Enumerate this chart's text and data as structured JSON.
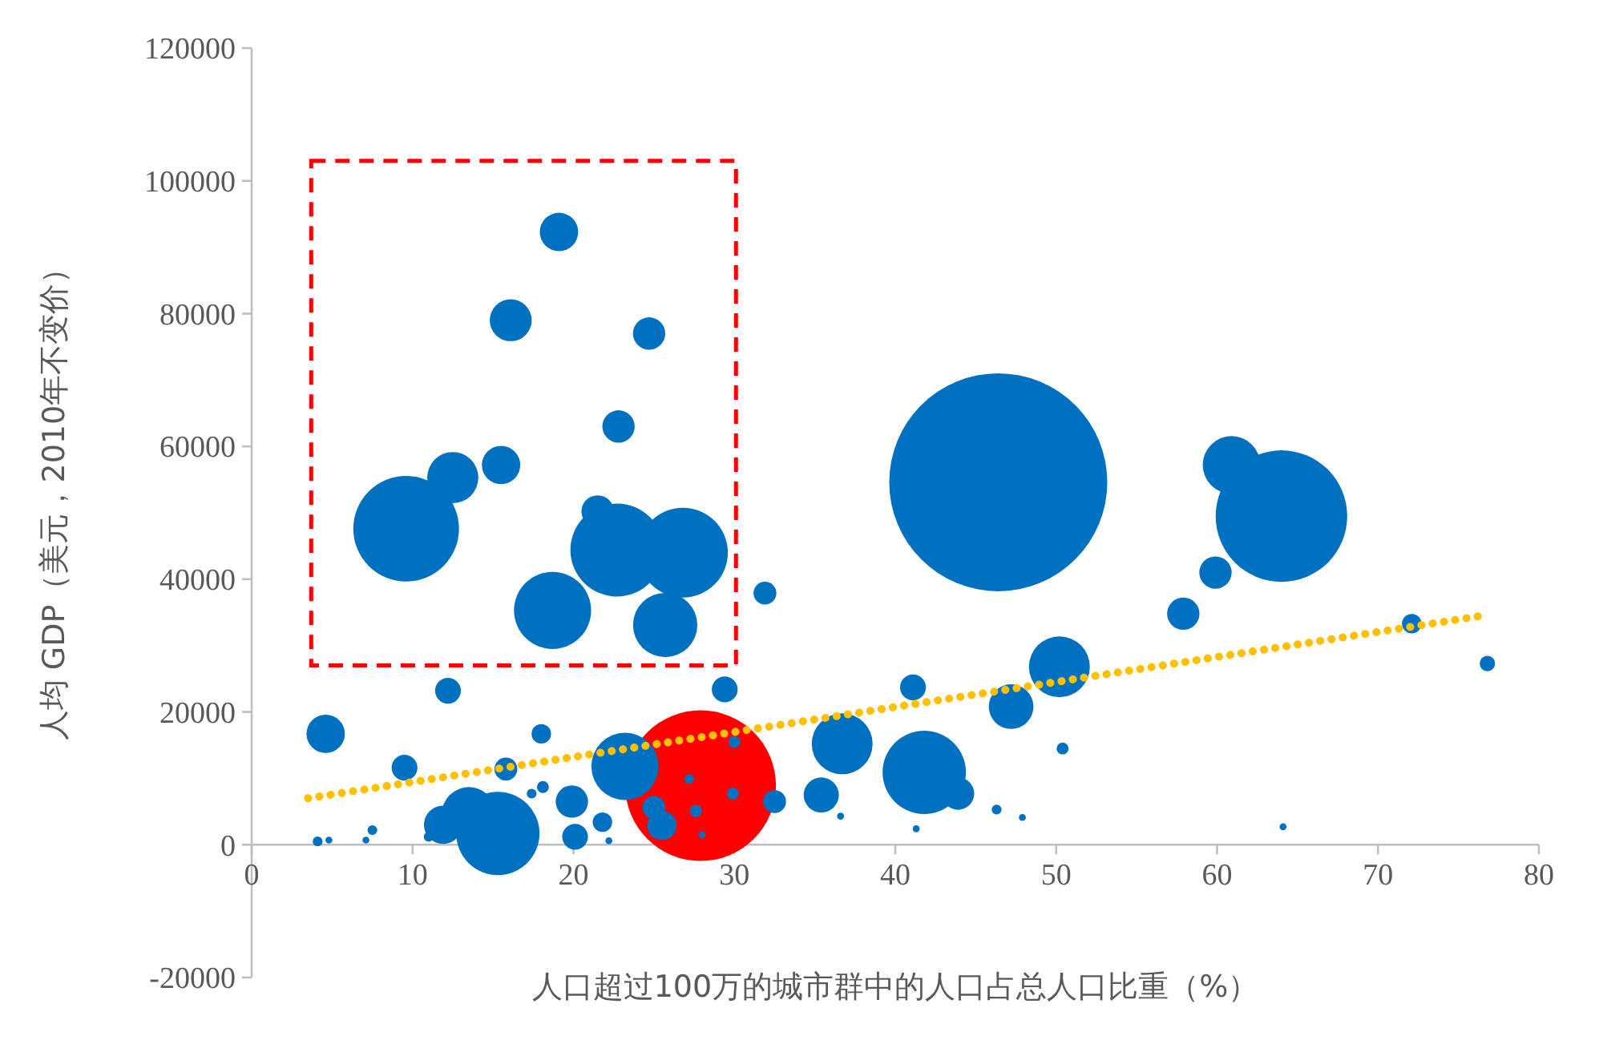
{
  "chart_data": {
    "type": "bubble",
    "xlabel": "人口超过100万的城市群中的人口占总人口比重（%）",
    "ylabel": "人均 GDP（美元，2010年不变价）",
    "xlim": [
      0,
      80
    ],
    "xticks": [
      0,
      10,
      20,
      30,
      40,
      50,
      60,
      70,
      80
    ],
    "ylim": [
      -20000,
      120000
    ],
    "yticks": [
      -20000,
      0,
      20000,
      40000,
      60000,
      80000,
      100000,
      120000
    ],
    "series": [
      {
        "colors": [
          "#ff0000",
          "#0070c0",
          "#0070c0",
          "#0070c0",
          "#0070c0",
          "#0070c0",
          "#0070c0",
          "#0070c0",
          "#0070c0",
          "#0070c0",
          "#0070c0",
          "#0070c0",
          "#0070c0",
          "#0070c0",
          "#0070c0",
          "#0070c0",
          "#0070c0",
          "#0070c0",
          "#0070c0",
          "#0070c0",
          "#0070c0",
          "#0070c0",
          "#0070c0",
          "#0070c0",
          "#0070c0",
          "#0070c0",
          "#0070c0",
          "#0070c0",
          "#0070c0",
          "#0070c0",
          "#0070c0",
          "#0070c0",
          "#0070c0",
          "#0070c0",
          "#0070c0",
          "#0070c0",
          "#0070c0",
          "#0070c0",
          "#0070c0",
          "#0070c0",
          "#0070c0",
          "#0070c0",
          "#0070c0",
          "#0070c0",
          "#0070c0",
          "#0070c0",
          "#0070c0",
          "#0070c0",
          "#0070c0",
          "#0070c0",
          "#0070c0",
          "#0070c0",
          "#0070c0",
          "#0070c0",
          "#0070c0",
          "#0070c0",
          "#0070c0",
          "#0070c0",
          "#0070c0",
          "#0070c0",
          "#0070c0",
          "#0070c0",
          "#0070c0"
        ],
        "x": [
          27.9,
          46.4,
          64.0,
          9.6,
          22.7,
          26.8,
          18.7,
          25.7,
          15.3,
          41.8,
          19.1,
          16.1,
          24.7,
          22.8,
          12.5,
          15.5,
          21.5,
          31.9,
          60.9,
          59.9,
          57.9,
          72.1,
          76.8,
          50.2,
          41.1,
          47.2,
          29.4,
          12.2,
          4.6,
          18.0,
          9.5,
          15.8,
          23.2,
          36.7,
          35.4,
          43.9,
          32.5,
          13.5,
          11.9,
          19.9,
          20.1,
          21.8,
          25.0,
          25.5,
          27.2,
          27.6,
          29.9,
          30.0,
          18.1,
          17.4,
          4.1,
          4.8,
          7.5,
          7.1,
          11.0,
          36.6,
          41.3,
          46.3,
          47.9,
          50.4,
          64.1,
          22.2,
          28.0
        ],
        "values": [
          8900,
          54600,
          49500,
          47600,
          44400,
          44000,
          35300,
          33100,
          1700,
          10900,
          92300,
          79000,
          77000,
          63000,
          55300,
          57200,
          50200,
          37900,
          57200,
          41000,
          34800,
          33300,
          27300,
          26800,
          23700,
          20800,
          23400,
          23200,
          16700,
          16700,
          11600,
          11400,
          11800,
          15200,
          7500,
          7700,
          6500,
          4600,
          3000,
          6500,
          1200,
          3400,
          5600,
          2900,
          9900,
          5100,
          7700,
          15500,
          8700,
          7700,
          500,
          700,
          2200,
          700,
          1200,
          4300,
          2400,
          5300,
          4100,
          14500,
          2700,
          600,
          1500
        ],
        "sizes": [
          0.478,
          1,
          0.364,
          0.235,
          0.182,
          0.17,
          0.125,
          0.087,
          0.146,
          0.146,
          0.031,
          0.037,
          0.022,
          0.022,
          0.055,
          0.031,
          0.022,
          0.011,
          0.07,
          0.022,
          0.022,
          0.008,
          0.005,
          0.078,
          0.014,
          0.042,
          0.014,
          0.014,
          0.031,
          0.008,
          0.014,
          0.011,
          0.095,
          0.078,
          0.026,
          0.022,
          0.011,
          0.062,
          0.031,
          0.022,
          0.014,
          0.008,
          0.011,
          0.018,
          0.002,
          0.003,
          0.003,
          0.003,
          0.003,
          0.002,
          0.002,
          0.001,
          0.002,
          0.001,
          0.002,
          0.001,
          0.001,
          0.002,
          0.001,
          0.003,
          0.001,
          0.001,
          0.001
        ]
      },
      {
        "type": "line",
        "color": "#ffc000",
        "line_style": "dotted",
        "marker": "none",
        "x": [
          3.5,
          76.5
        ],
        "values": [
          7000,
          34500
        ]
      }
    ]
  }
}
